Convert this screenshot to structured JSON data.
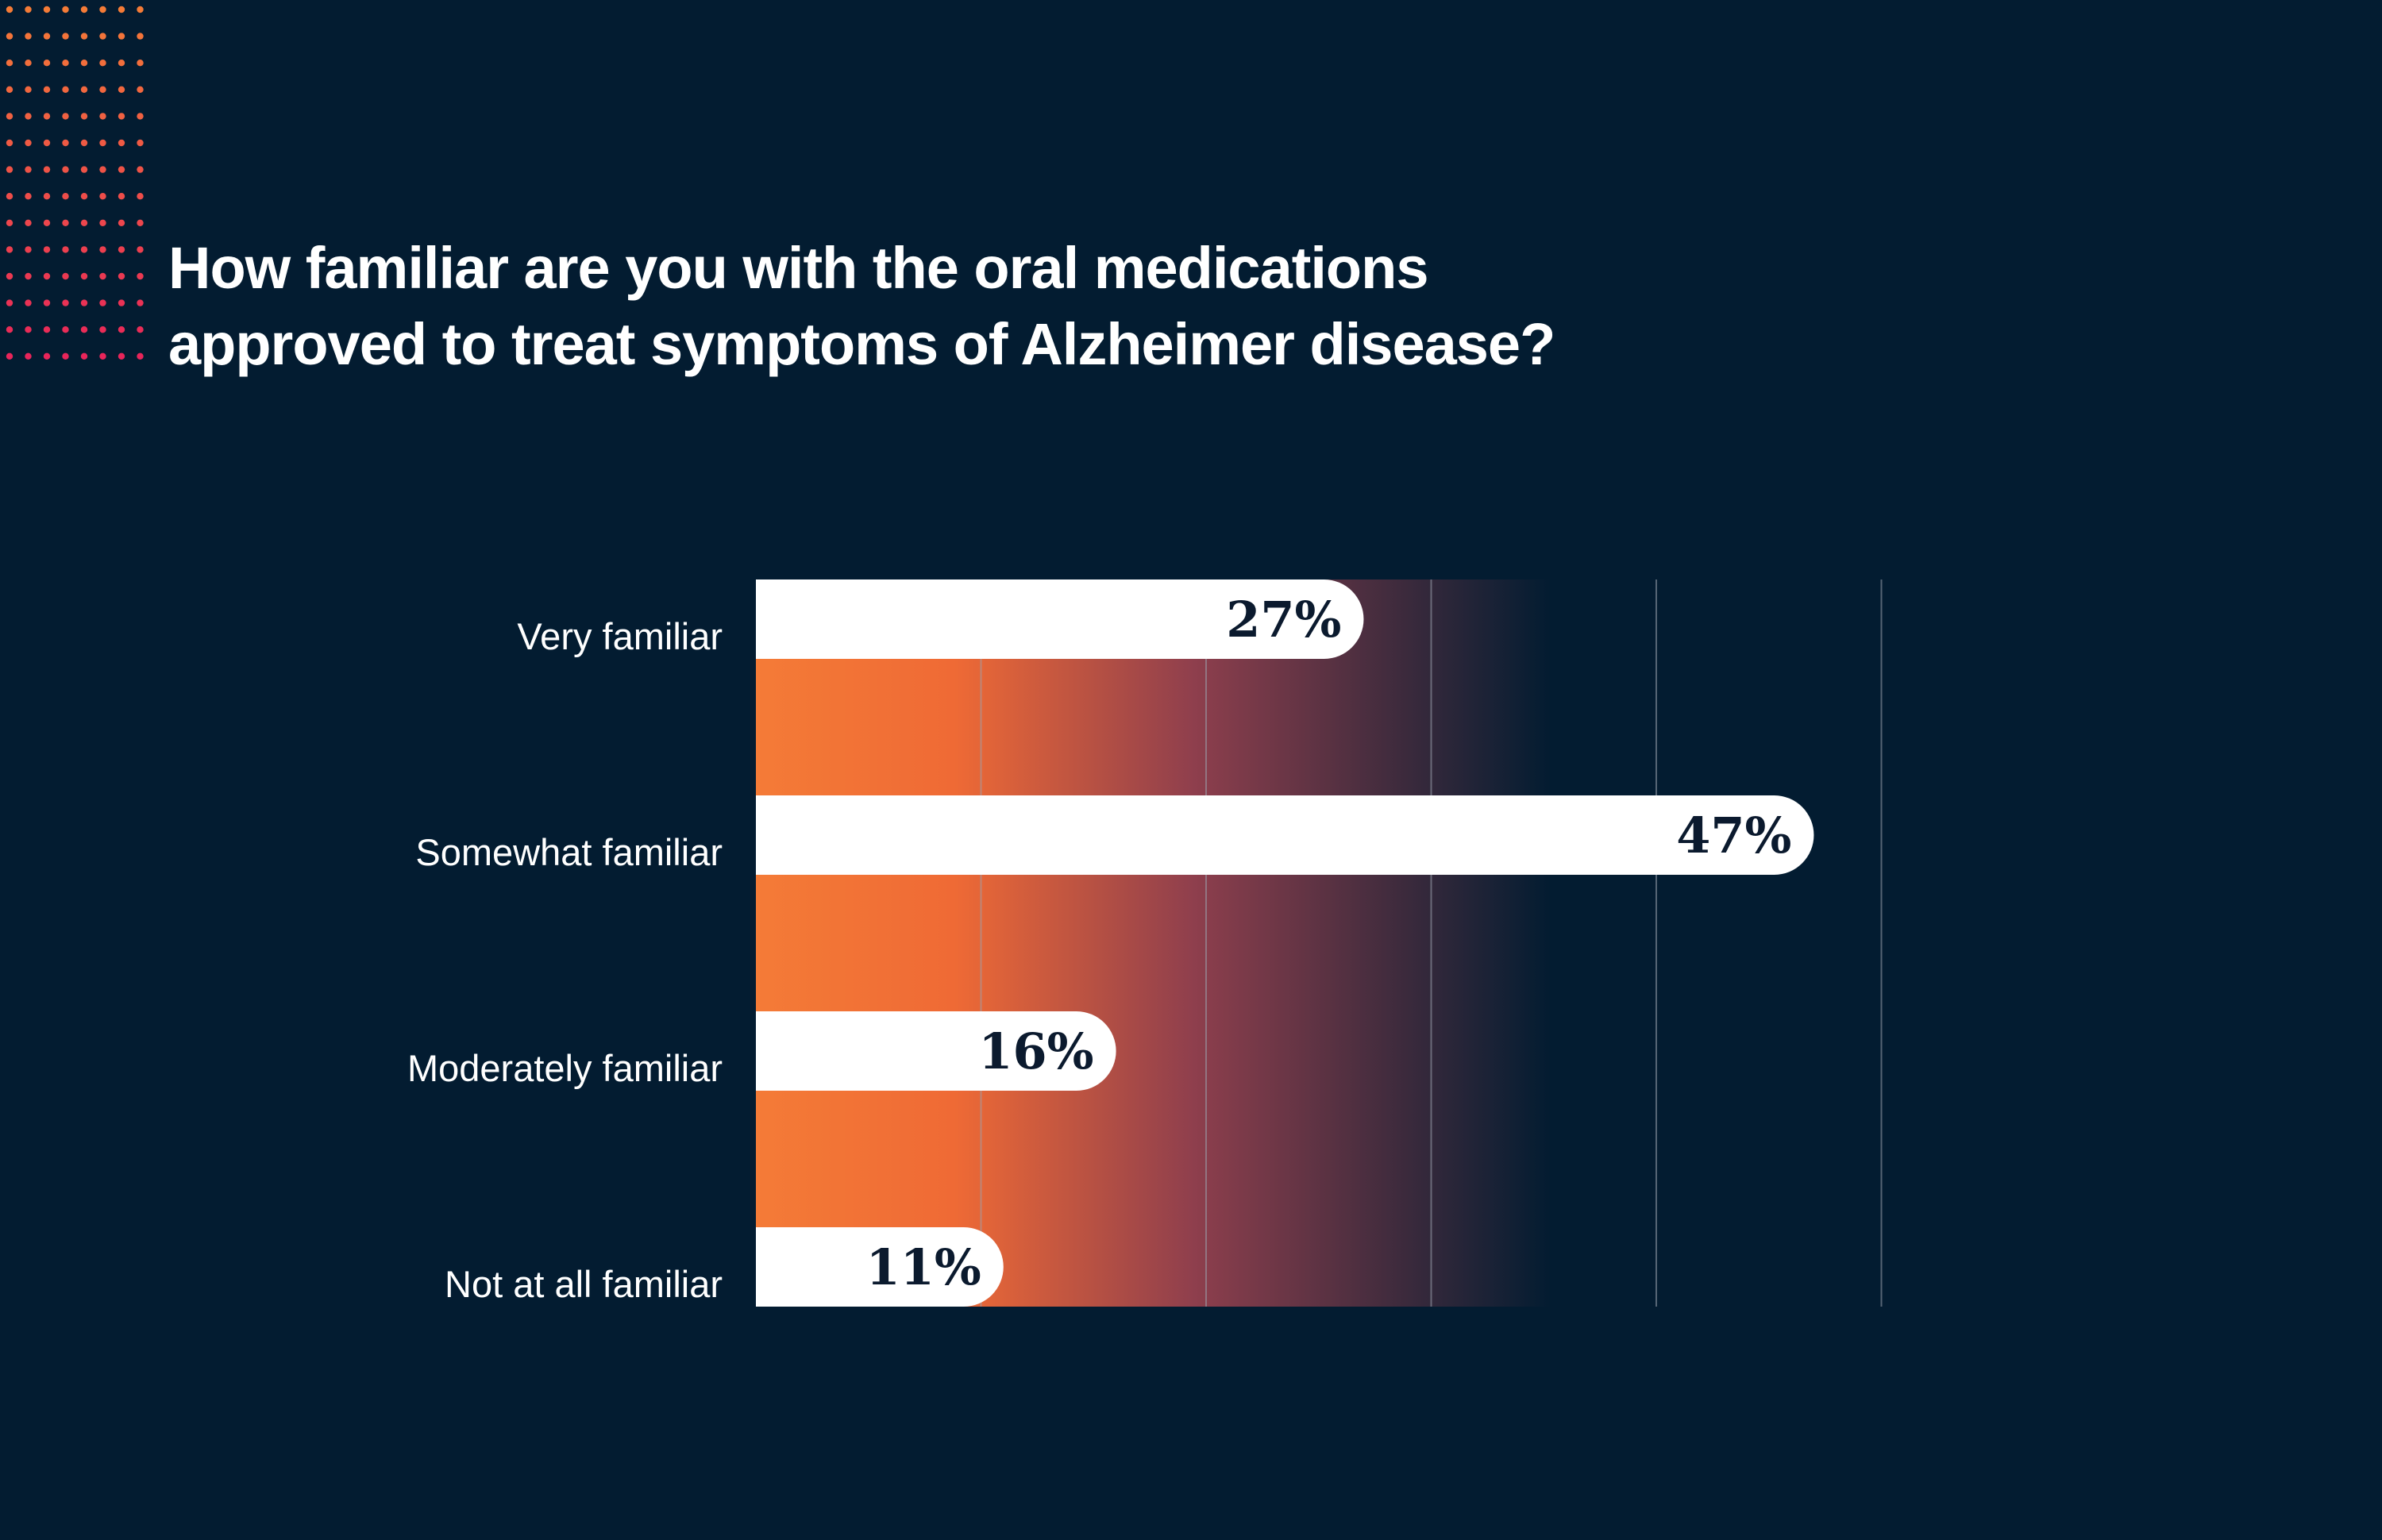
{
  "title_lines": [
    "How familiar are you with the oral medications",
    "approved to treat symptoms of Alzheimer disease?"
  ],
  "colors": {
    "background": "#031c31",
    "bar": "#ffffff",
    "gradient_start": "#f47b37",
    "gradient_mid": "#8f3f4d",
    "gradient_end": "#031c31",
    "dots_top": "#f47b37",
    "dots_bottom": "#e8255a",
    "gridline": "#9aa3ad",
    "value_text": "#0b1a2e"
  },
  "chart_data": {
    "type": "bar",
    "orientation": "horizontal",
    "title": "How familiar are you with the oral medications approved to treat symptoms of Alzheimer disease?",
    "categories": [
      "Very familiar",
      "Somewhat familiar",
      "Moderately familiar",
      "Not at all familiar"
    ],
    "values": [
      27,
      47,
      16,
      11
    ],
    "value_labels": [
      "27%",
      "47%",
      "16%",
      "11%"
    ],
    "unit": "%",
    "xlim": [
      0,
      50
    ],
    "gridlines_at": [
      10,
      20,
      30,
      40,
      50
    ],
    "grid": true,
    "legend": "none"
  }
}
